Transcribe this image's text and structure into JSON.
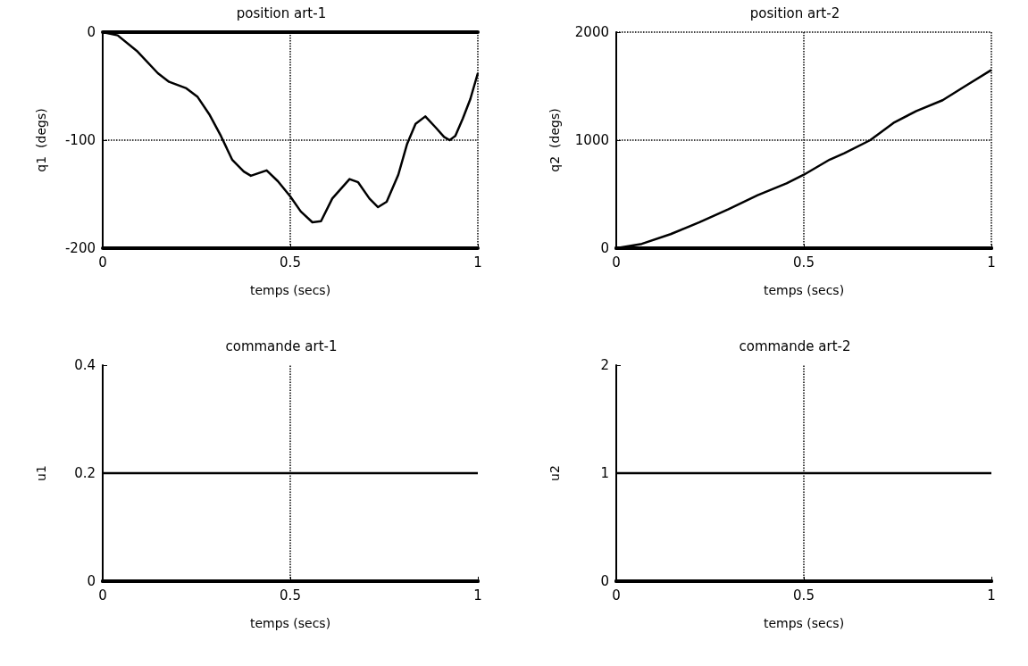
{
  "chart_data": [
    {
      "type": "line",
      "title": "position art-1",
      "xlabel": "temps (secs)",
      "ylabel": "q1  (degs)",
      "xlim": [
        0,
        1
      ],
      "xticks": [
        0,
        0.5,
        1
      ],
      "ylim": [
        -200,
        0
      ],
      "yticks": [
        -200,
        -100,
        0
      ],
      "grid": true,
      "series": [
        {
          "color": "#000000",
          "x": [
            0,
            0.04,
            0.093,
            0.147,
            0.177,
            0.223,
            0.253,
            0.284,
            0.315,
            0.345,
            0.376,
            0.395,
            0.437,
            0.467,
            0.5,
            0.528,
            0.559,
            0.582,
            0.612,
            0.658,
            0.681,
            0.711,
            0.734,
            0.757,
            0.788,
            0.811,
            0.834,
            0.86,
            0.887,
            0.91,
            0.925,
            0.94,
            0.96,
            0.98,
            1.0
          ],
          "values": [
            0,
            -3,
            -18,
            -38,
            -46,
            -52,
            -60,
            -76,
            -96,
            -118,
            -129,
            -133,
            -128,
            -138,
            -152,
            -166,
            -176,
            -175,
            -154,
            -136,
            -139,
            -154,
            -162,
            -157,
            -132,
            -104,
            -85,
            -78,
            -88,
            -97,
            -100,
            -96,
            -80,
            -62,
            -38
          ]
        }
      ]
    },
    {
      "type": "line",
      "title": "position art-2",
      "xlabel": "temps (secs)",
      "ylabel": "q2  (degs)",
      "xlim": [
        0,
        1
      ],
      "xticks": [
        0,
        0.5,
        1
      ],
      "ylim": [
        0,
        2000
      ],
      "yticks": [
        0,
        1000,
        2000
      ],
      "grid": true,
      "series": [
        {
          "color": "#000000",
          "x": [
            0,
            0.068,
            0.145,
            0.222,
            0.299,
            0.377,
            0.454,
            0.5,
            0.569,
            0.608,
            0.677,
            0.739,
            0.8,
            0.87,
            0.93,
            1.0
          ],
          "values": [
            0,
            40,
            130,
            240,
            360,
            490,
            600,
            680,
            820,
            880,
            1000,
            1160,
            1270,
            1370,
            1500,
            1650
          ]
        }
      ]
    },
    {
      "type": "line",
      "title": "commande art-1",
      "xlabel": "temps (secs)",
      "ylabel": "u1",
      "xlim": [
        0,
        1
      ],
      "xticks": [
        0,
        0.5,
        1
      ],
      "ylim": [
        0,
        0.4
      ],
      "yticks": [
        0,
        0.2,
        0.4
      ],
      "ref_lines": [
        {
          "axis": "x",
          "value": 0.5,
          "line_style": "dotted"
        }
      ],
      "series": [
        {
          "color": "#000000",
          "x": [
            0,
            1
          ],
          "values": [
            0.2,
            0.2
          ]
        }
      ]
    },
    {
      "type": "line",
      "title": "commande art-2",
      "xlabel": "temps (secs)",
      "ylabel": "u2",
      "xlim": [
        0,
        1
      ],
      "xticks": [
        0,
        0.5,
        1
      ],
      "ylim": [
        0,
        2
      ],
      "yticks": [
        0,
        1,
        2
      ],
      "ref_lines": [
        {
          "axis": "x",
          "value": 0.5,
          "line_style": "dotted"
        }
      ],
      "series": [
        {
          "color": "#000000",
          "x": [
            0,
            1
          ],
          "values": [
            1,
            1
          ]
        }
      ]
    }
  ]
}
